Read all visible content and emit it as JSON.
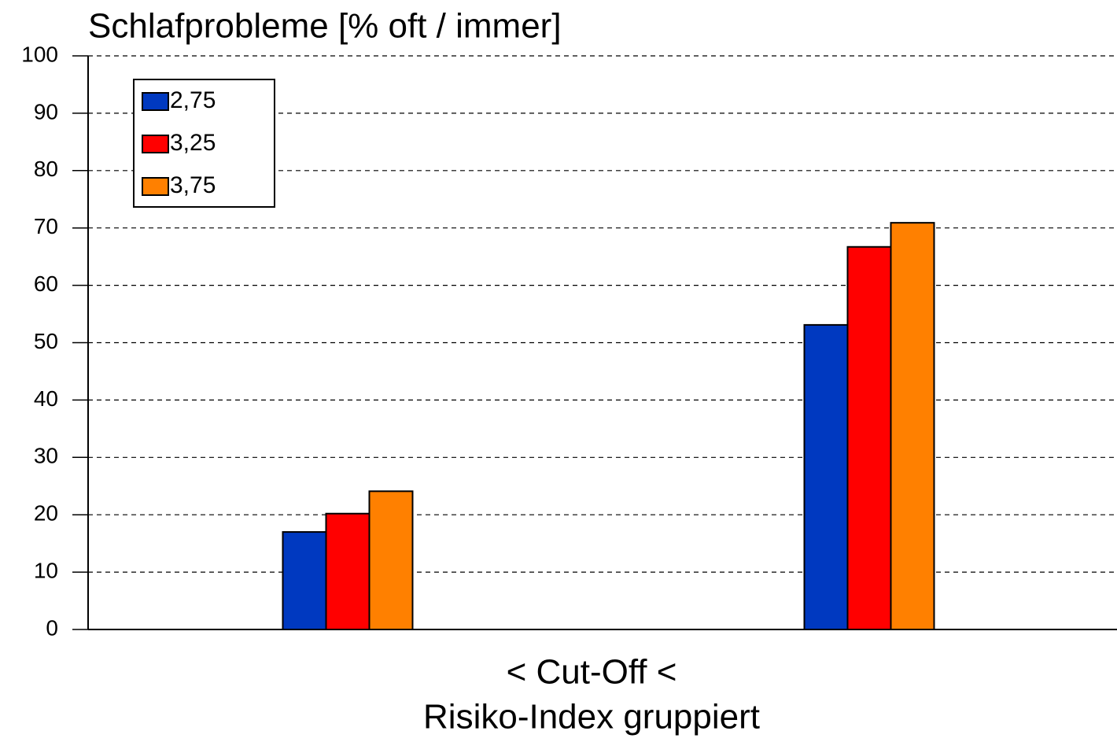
{
  "chart_data": {
    "type": "bar",
    "title": "Schlafprobleme [% oft / immer]",
    "x_label_lines": [
      "<  Cut-Off  <",
      "Risiko-Index gruppiert"
    ],
    "categories": [
      null,
      null
    ],
    "series": [
      {
        "name": "2,75",
        "color": "#0039c0",
        "values": [
          17.0,
          53.1
        ]
      },
      {
        "name": "3,25",
        "color": "#ff0000",
        "values": [
          20.2,
          66.7
        ]
      },
      {
        "name": "3,75",
        "color": "#ff8000",
        "values": [
          24.1,
          70.9
        ]
      }
    ],
    "ylim": [
      0,
      100
    ],
    "yticks": [
      0,
      10,
      20,
      30,
      40,
      50,
      60,
      70,
      80,
      90,
      100
    ],
    "grid": true,
    "legend": "top-left"
  }
}
